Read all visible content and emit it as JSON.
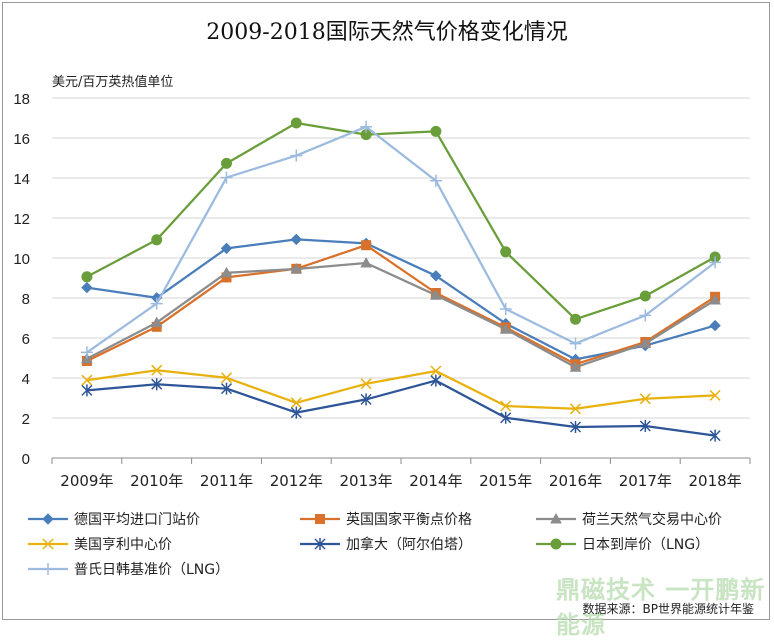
{
  "chart_data": {
    "type": "line",
    "title": "2009-2018国际天然气价格变化情况",
    "ylabel": "美元/百万英热值单位",
    "xlabel": "",
    "categories": [
      "2009年",
      "2010年",
      "2011年",
      "2012年",
      "2013年",
      "2014年",
      "2015年",
      "2016年",
      "2017年",
      "2018年"
    ],
    "ylim": [
      0,
      18
    ],
    "yticks": [
      0,
      2,
      4,
      6,
      8,
      10,
      12,
      14,
      16,
      18
    ],
    "grid": true,
    "legend_position": "bottom",
    "source": "数据来源：BP世界能源统计年鉴",
    "watermark": "鼎磁技术 一开鹏新能源",
    "series": [
      {
        "name": "德国平均进口门站价",
        "color": "#4a7ebb",
        "marker": "diamond",
        "values": [
          8.52,
          8.01,
          10.48,
          10.93,
          10.73,
          9.11,
          6.72,
          4.93,
          5.62,
          6.62
        ]
      },
      {
        "name": "英国国家平衡点价格",
        "color": "#d9712b",
        "marker": "square",
        "values": [
          4.85,
          6.56,
          9.03,
          9.46,
          10.64,
          8.25,
          6.53,
          4.69,
          5.8,
          8.06
        ]
      },
      {
        "name": "荷兰天然气交易中心价",
        "color": "#8c8c8c",
        "marker": "triangle",
        "values": [
          4.96,
          6.77,
          9.26,
          9.45,
          9.75,
          8.14,
          6.44,
          4.54,
          5.72,
          7.9
        ]
      },
      {
        "name": "美国亨利中心价",
        "color": "#e8b10e",
        "marker": "x",
        "values": [
          3.89,
          4.39,
          4.01,
          2.76,
          3.71,
          4.35,
          2.6,
          2.46,
          2.96,
          3.13
        ]
      },
      {
        "name": "加拿大（阿尔伯塔）",
        "color": "#2e5597",
        "marker": "star",
        "values": [
          3.38,
          3.69,
          3.47,
          2.27,
          2.93,
          3.87,
          2.01,
          1.55,
          1.6,
          1.12
        ]
      },
      {
        "name": "日本到岸价（LNG）",
        "color": "#6a9e3a",
        "marker": "circle",
        "values": [
          9.06,
          10.91,
          14.73,
          16.75,
          16.17,
          16.33,
          10.31,
          6.94,
          8.1,
          10.05
        ]
      },
      {
        "name": "普氏日韩基准价（LNG）",
        "color": "#9dbbdf",
        "marker": "plus",
        "values": [
          5.28,
          7.72,
          14.02,
          15.12,
          16.56,
          13.86,
          7.45,
          5.72,
          7.13,
          9.78
        ]
      }
    ]
  }
}
